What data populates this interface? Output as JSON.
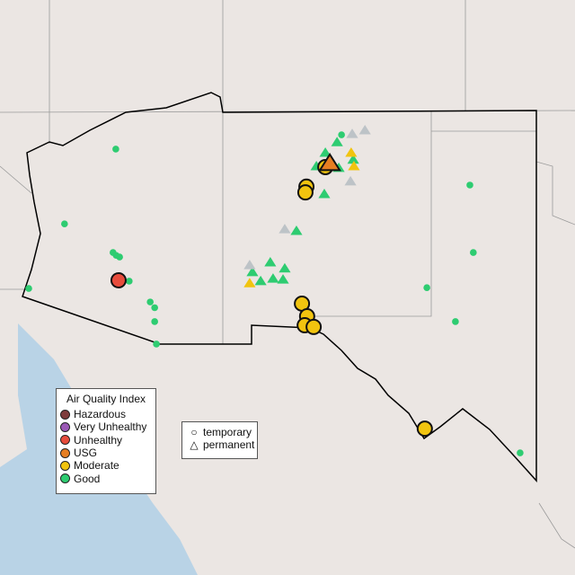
{
  "legend": {
    "title": "Air Quality Index",
    "categories": [
      {
        "label": "Hazardous",
        "color": "#7e3b3b"
      },
      {
        "label": "Very Unhealthy",
        "color": "#9b59b6"
      },
      {
        "label": "Unhealthy",
        "color": "#e74c3c"
      },
      {
        "label": "USG",
        "color": "#e67e22"
      },
      {
        "label": "Moderate",
        "color": "#f1c40f"
      },
      {
        "label": "Good",
        "color": "#2ecc71"
      }
    ]
  },
  "type_legend": {
    "temporary": "temporary",
    "permanent": "permanent"
  },
  "no_data_color": "#bdc3c7",
  "monitors": {
    "temporary": [
      {
        "lon": -112.08,
        "lat": 32.89,
        "aqi": "Unhealthy"
      },
      {
        "lon": -106.07,
        "lat": 35.66,
        "aqi": "Moderate"
      },
      {
        "lon": -106.62,
        "lat": 35.18,
        "aqi": "Moderate"
      },
      {
        "lon": -106.65,
        "lat": 35.04,
        "aqi": "Moderate"
      },
      {
        "lon": -106.75,
        "lat": 32.32,
        "aqi": "Moderate"
      },
      {
        "lon": -106.6,
        "lat": 32.01,
        "aqi": "Moderate"
      },
      {
        "lon": -106.67,
        "lat": 31.79,
        "aqi": "Moderate"
      },
      {
        "lon": -106.41,
        "lat": 31.75,
        "aqi": "Moderate"
      },
      {
        "lon": -103.18,
        "lat": 29.26,
        "aqi": "Moderate"
      }
    ],
    "permanent_large": [
      {
        "lon": -105.94,
        "lat": 35.75,
        "aqi": "USG"
      }
    ],
    "good_points": [
      {
        "lon": -112.16,
        "lat": 36.1
      },
      {
        "lon": -113.65,
        "lat": 34.27
      },
      {
        "lon": -112.24,
        "lat": 33.57
      },
      {
        "lon": -112.15,
        "lat": 33.5
      },
      {
        "lon": -112.05,
        "lat": 33.46
      },
      {
        "lon": -111.77,
        "lat": 32.87
      },
      {
        "lon": -111.16,
        "lat": 32.36
      },
      {
        "lon": -111.03,
        "lat": 32.22
      },
      {
        "lon": -111.03,
        "lat": 31.88
      },
      {
        "lon": -110.98,
        "lat": 31.33
      },
      {
        "lon": -114.69,
        "lat": 32.69
      },
      {
        "lon": -105.6,
        "lat": 36.45
      },
      {
        "lon": -101.87,
        "lat": 35.22
      },
      {
        "lon": -101.77,
        "lat": 33.57
      },
      {
        "lon": -103.12,
        "lat": 32.71
      },
      {
        "lon": -102.29,
        "lat": 31.88
      },
      {
        "lon": -100.41,
        "lat": 28.67
      }
    ],
    "permanent": [
      {
        "lon": -105.73,
        "lat": 36.27,
        "aqi": "Good"
      },
      {
        "lon": -106.07,
        "lat": 36.01,
        "aqi": "Good"
      },
      {
        "lon": -105.26,
        "lat": 35.84,
        "aqi": "Good"
      },
      {
        "lon": -106.33,
        "lat": 35.68,
        "aqi": "Good"
      },
      {
        "lon": -105.68,
        "lat": 35.64,
        "aqi": "Good"
      },
      {
        "lon": -106.1,
        "lat": 35.0,
        "aqi": "Good"
      },
      {
        "lon": -106.91,
        "lat": 34.1,
        "aqi": "Good"
      },
      {
        "lon": -107.67,
        "lat": 33.33,
        "aqi": "Good"
      },
      {
        "lon": -107.25,
        "lat": 33.18,
        "aqi": "Good"
      },
      {
        "lon": -108.19,
        "lat": 33.09,
        "aqi": "Good"
      },
      {
        "lon": -107.95,
        "lat": 32.87,
        "aqi": "Good"
      },
      {
        "lon": -107.59,
        "lat": 32.93,
        "aqi": "Good"
      },
      {
        "lon": -107.3,
        "lat": 32.91,
        "aqi": "Good"
      },
      {
        "lon": -105.29,
        "lat": 36.47,
        "aqi": "none"
      },
      {
        "lon": -104.92,
        "lat": 36.56,
        "aqi": "none"
      },
      {
        "lon": -105.34,
        "lat": 35.31,
        "aqi": "none"
      },
      {
        "lon": -107.25,
        "lat": 34.14,
        "aqi": "none"
      },
      {
        "lon": -108.27,
        "lat": 33.26,
        "aqi": "none"
      },
      {
        "lon": -105.32,
        "lat": 36.01,
        "aqi": "Moderate"
      },
      {
        "lon": -105.24,
        "lat": 35.68,
        "aqi": "Moderate"
      },
      {
        "lon": -108.27,
        "lat": 32.82,
        "aqi": "Moderate"
      }
    ]
  }
}
